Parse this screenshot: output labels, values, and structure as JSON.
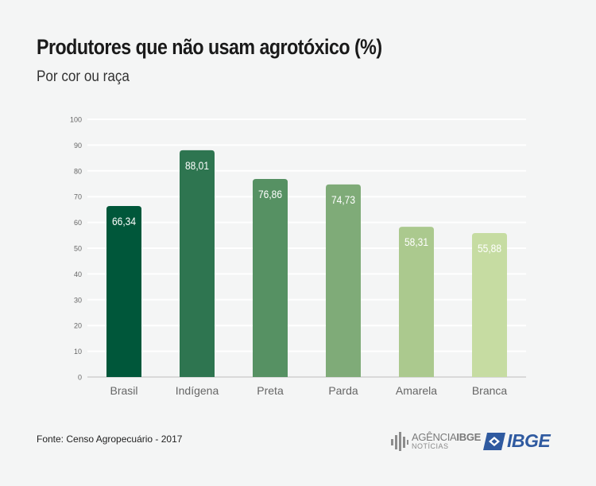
{
  "header": {
    "title": "Produtores que não usam agrotóxico (%)",
    "subtitle": "Por cor ou raça"
  },
  "footer": {
    "source": "Fonte: Censo Agropecuário - 2017",
    "agencia_logo_main": "AGÊNCIA",
    "agencia_logo_bold": "IBGE",
    "agencia_logo_sub": "NOTÍCIAS",
    "ibge_logo": "IBGE"
  },
  "chart_data": {
    "type": "bar",
    "categories": [
      "Brasil",
      "Indígena",
      "Preta",
      "Parda",
      "Amarela",
      "Branca"
    ],
    "values": [
      66.34,
      88.01,
      76.86,
      74.73,
      58.31,
      55.88
    ],
    "data_labels": [
      "66,34",
      "88,01",
      "76,86",
      "74,73",
      "58,31",
      "55,88"
    ],
    "colors": [
      "#00573a",
      "#2e7550",
      "#569163",
      "#7fab78",
      "#abc98e",
      "#c6dca2"
    ],
    "ylim": [
      0,
      100
    ],
    "yticks": [
      0,
      10,
      20,
      30,
      40,
      50,
      60,
      70,
      80,
      90,
      100
    ],
    "grid": true,
    "gridColor": "#ffffff",
    "axisColor": "#d9d9d9"
  }
}
